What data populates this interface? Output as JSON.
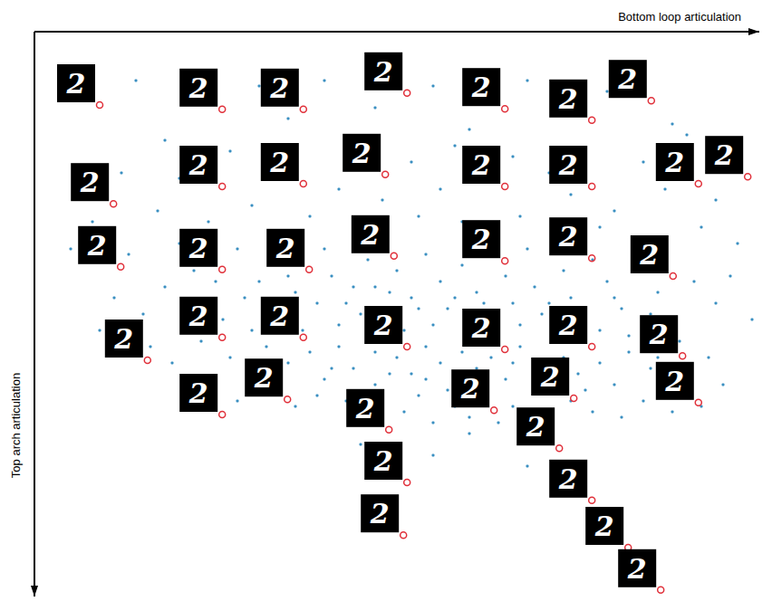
{
  "chart_data": {
    "type": "scatter",
    "x_label": "Bottom loop articulation",
    "y_label": "Top arch articulation",
    "xlim": [
      0,
      100
    ],
    "ylim": [
      0,
      104
    ],
    "tick_labels": false,
    "color": "#3a8fc1",
    "marker": "dot",
    "x": [
      14,
      22,
      31,
      35,
      40,
      47,
      55,
      60,
      68,
      72,
      79,
      88,
      93,
      18,
      27,
      44,
      52,
      58,
      66,
      71,
      84,
      90,
      96,
      12,
      20,
      33,
      42,
      48,
      56,
      62,
      74,
      80,
      87,
      94,
      8,
      17,
      24,
      30,
      38,
      45,
      53,
      59,
      67,
      72,
      78,
      85,
      92,
      97,
      5,
      13,
      20,
      22,
      28,
      31,
      33,
      36,
      40,
      41,
      43,
      46,
      47,
      50,
      52,
      54,
      56,
      57,
      59,
      61,
      63,
      65,
      66,
      68,
      69,
      70,
      73,
      74,
      76,
      79,
      81,
      83,
      86,
      88,
      91,
      94,
      18,
      24,
      26,
      29,
      34,
      37,
      39,
      42,
      44,
      48,
      51,
      53,
      55,
      58,
      60,
      62,
      64,
      67,
      71,
      72,
      75,
      78,
      80,
      82,
      85,
      89,
      15,
      11,
      9,
      21,
      25,
      30,
      35,
      45,
      49,
      77,
      84,
      96,
      99,
      16,
      19,
      23,
      27,
      30,
      32,
      35,
      38,
      40,
      42,
      44,
      46,
      47,
      50,
      52,
      54,
      56,
      57,
      59,
      61,
      63,
      65,
      67,
      69,
      71,
      73,
      75,
      78,
      80,
      82,
      85,
      87,
      90,
      93,
      95,
      21,
      25,
      28,
      33,
      36,
      39,
      43,
      45,
      48,
      51,
      53,
      55,
      58,
      60,
      62,
      64,
      66,
      68,
      70,
      74,
      77,
      81,
      84,
      88,
      92,
      31,
      41,
      49,
      58,
      66,
      76,
      86,
      54,
      47,
      62,
      45,
      55,
      60,
      68,
      50
    ],
    "values": [
      9,
      12,
      10,
      16,
      9,
      14,
      10,
      18,
      9,
      15,
      11,
      17,
      21,
      20,
      22,
      20,
      24,
      21,
      23,
      26,
      24,
      19,
      24,
      26,
      27,
      25,
      29,
      31,
      29,
      27,
      30,
      33,
      29,
      31,
      35,
      33,
      35,
      32,
      34,
      36,
      34,
      35,
      34,
      37,
      36,
      38,
      36,
      39,
      40,
      41,
      39,
      44,
      40,
      46,
      42,
      48,
      40,
      45,
      50,
      42,
      47,
      44,
      49,
      41,
      46,
      51,
      43,
      48,
      53,
      45,
      50,
      40,
      47,
      52,
      44,
      49,
      54,
      46,
      51,
      43,
      48,
      53,
      46,
      50,
      47,
      50,
      53,
      49,
      52,
      55,
      50,
      54,
      47,
      52,
      55,
      51,
      54,
      49,
      55,
      50,
      57,
      54,
      50,
      56,
      51,
      55,
      49,
      56,
      52,
      57,
      52,
      49,
      55,
      55,
      46,
      55,
      45,
      52,
      48,
      42,
      57,
      45,
      53,
      58,
      61,
      57,
      60,
      63,
      58,
      61,
      59,
      64,
      58,
      62,
      57,
      65,
      60,
      63,
      58,
      61,
      66,
      59,
      62,
      60,
      64,
      58,
      62,
      66,
      60,
      63,
      61,
      65,
      59,
      62,
      66,
      63,
      60,
      65,
      64,
      66,
      68,
      66,
      69,
      67,
      68,
      71,
      67,
      70,
      67,
      72,
      69,
      71,
      68,
      72,
      69,
      71,
      73,
      68,
      70,
      71,
      68,
      70,
      69,
      61,
      62,
      63,
      63,
      61,
      66,
      60,
      64,
      59,
      65,
      76,
      78,
      74,
      80,
      80
    ],
    "thumbnails": {
      "color": "#e0303a",
      "x": [
        9.0,
        25.9,
        37.1,
        51.4,
        64.9,
        76.9,
        85.1,
        10.9,
        25.9,
        37.1,
        48.4,
        64.9,
        76.9,
        91.6,
        98.4,
        11.9,
        25.9,
        37.9,
        49.6,
        64.9,
        76.9,
        88.1,
        15.6,
        25.9,
        37.1,
        51.4,
        64.9,
        76.9,
        89.4,
        25.9,
        34.9,
        48.9,
        63.4,
        74.4,
        91.6,
        51.4,
        50.9,
        72.4,
        76.9,
        81.9,
        86.4
      ],
      "y": [
        13.5,
        14.3,
        14.3,
        11.3,
        14.2,
        16.3,
        12.7,
        31.7,
        28.5,
        28.0,
        26.3,
        28.5,
        28.5,
        28.0,
        26.7,
        43.3,
        43.8,
        43.8,
        41.3,
        42.2,
        41.7,
        45.0,
        60.5,
        56.3,
        56.3,
        58.0,
        58.5,
        58.0,
        59.7,
        70.5,
        67.7,
        73.3,
        69.7,
        67.5,
        68.3,
        83.0,
        92.7,
        76.7,
        86.3,
        95.0,
        102.8
      ],
      "labels": [
        "2",
        "2",
        "2",
        "2",
        "2",
        "2",
        "2",
        "2",
        "2",
        "2",
        "2",
        "2",
        "2",
        "2",
        "2",
        "2",
        "2",
        "2",
        "2",
        "2",
        "2",
        "2",
        "2",
        "2",
        "2",
        "2",
        "2",
        "2",
        "2",
        "2",
        "2",
        "2",
        "2",
        "2",
        "2",
        "2",
        "2",
        "2",
        "2",
        "2",
        "2"
      ]
    }
  }
}
